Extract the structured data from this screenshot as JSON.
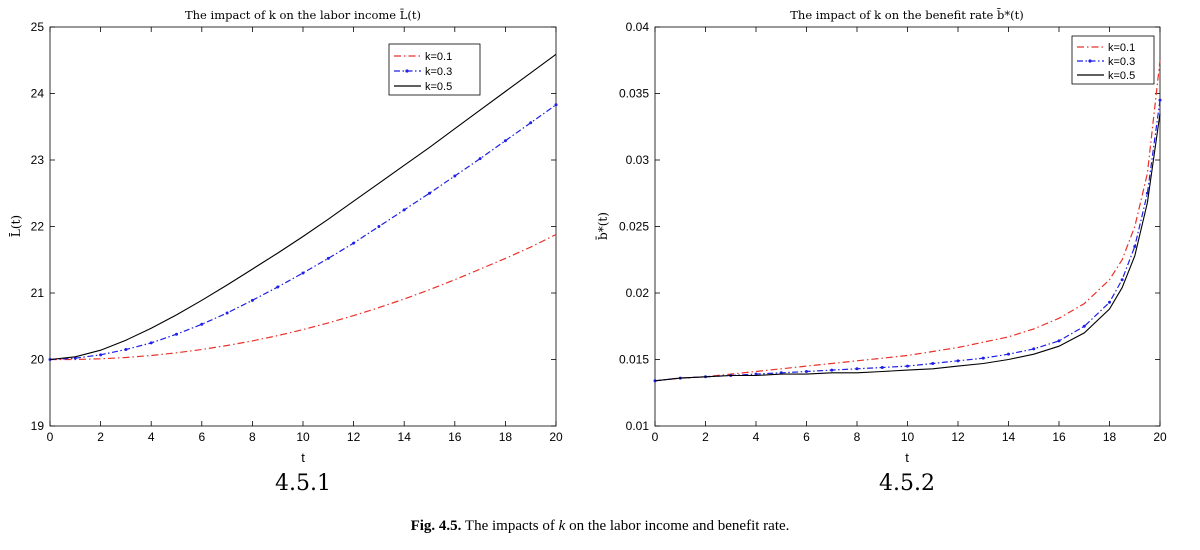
{
  "chart_data": [
    {
      "type": "line",
      "panel_label": "4.5.1",
      "title": "The impact of k on the labor income L̄(t)",
      "xlabel": "t",
      "ylabel": "L̄(t)",
      "xlim": [
        0,
        20
      ],
      "ylim": [
        19,
        25
      ],
      "xticks": [
        0,
        2,
        4,
        6,
        8,
        10,
        12,
        14,
        16,
        18,
        20
      ],
      "yticks": [
        19,
        20,
        21,
        22,
        23,
        24,
        25
      ],
      "legend_position": "top-right",
      "grid": false,
      "x": [
        0,
        1,
        2,
        3,
        4,
        5,
        6,
        7,
        8,
        9,
        10,
        11,
        12,
        13,
        14,
        15,
        16,
        17,
        18,
        19,
        20
      ],
      "series": [
        {
          "name": "k=0.1",
          "color": "#e8322a",
          "style": "dashdot",
          "values": [
            20.0,
            20.0,
            20.01,
            20.03,
            20.06,
            20.1,
            20.15,
            20.21,
            20.28,
            20.36,
            20.45,
            20.55,
            20.66,
            20.78,
            20.91,
            21.05,
            21.2,
            21.36,
            21.52,
            21.69,
            21.88
          ]
        },
        {
          "name": "k=0.3",
          "color": "#1f1fe6",
          "style": "dashdot-marker",
          "values": [
            20.0,
            20.02,
            20.07,
            20.15,
            20.25,
            20.38,
            20.53,
            20.7,
            20.89,
            21.09,
            21.3,
            21.52,
            21.75,
            22.0,
            22.25,
            22.5,
            22.76,
            23.02,
            23.29,
            23.56,
            23.83
          ]
        },
        {
          "name": "k=0.5",
          "color": "#000000",
          "style": "solid",
          "values": [
            20.0,
            20.04,
            20.14,
            20.29,
            20.47,
            20.67,
            20.89,
            21.12,
            21.36,
            21.6,
            21.85,
            22.11,
            22.38,
            22.65,
            22.92,
            23.19,
            23.47,
            23.75,
            24.03,
            24.31,
            24.59
          ]
        }
      ]
    },
    {
      "type": "line",
      "panel_label": "4.5.2",
      "title": "The impact of k on the benefit rate b̄*(t)",
      "xlabel": "t",
      "ylabel": "b̄*(t)",
      "xlim": [
        0,
        20
      ],
      "ylim": [
        0.01,
        0.04
      ],
      "xticks": [
        0,
        2,
        4,
        6,
        8,
        10,
        12,
        14,
        16,
        18,
        20
      ],
      "yticks": [
        0.01,
        0.015,
        0.02,
        0.025,
        0.03,
        0.035,
        0.04
      ],
      "ytick_labels": [
        "0.01",
        "0.015",
        "0.02",
        "0.025",
        "0.03",
        "0.035",
        "0.04"
      ],
      "legend_position": "top-right",
      "grid": false,
      "x": [
        0,
        1,
        2,
        3,
        4,
        5,
        6,
        7,
        8,
        9,
        10,
        11,
        12,
        13,
        14,
        15,
        16,
        17,
        18,
        18.5,
        19,
        19.5,
        20
      ],
      "series": [
        {
          "name": "k=0.1",
          "color": "#e8322a",
          "style": "dashdot",
          "values": [
            0.0134,
            0.0136,
            0.0137,
            0.0139,
            0.0141,
            0.0143,
            0.0145,
            0.0147,
            0.0149,
            0.0151,
            0.0153,
            0.0156,
            0.0159,
            0.0163,
            0.0167,
            0.0173,
            0.0181,
            0.0192,
            0.021,
            0.0225,
            0.025,
            0.029,
            0.0375
          ]
        },
        {
          "name": "k=0.3",
          "color": "#1f1fe6",
          "style": "dashdot-marker",
          "values": [
            0.0134,
            0.0136,
            0.0137,
            0.0138,
            0.0139,
            0.014,
            0.0141,
            0.0142,
            0.0143,
            0.0144,
            0.0145,
            0.0147,
            0.0149,
            0.0151,
            0.0154,
            0.0158,
            0.0164,
            0.0175,
            0.0193,
            0.021,
            0.0235,
            0.0275,
            0.0345
          ]
        },
        {
          "name": "k=0.5",
          "color": "#000000",
          "style": "solid",
          "values": [
            0.0134,
            0.0136,
            0.0137,
            0.0138,
            0.0138,
            0.0139,
            0.0139,
            0.014,
            0.014,
            0.0141,
            0.0142,
            0.0143,
            0.0145,
            0.0147,
            0.015,
            0.0154,
            0.016,
            0.017,
            0.0188,
            0.0204,
            0.0228,
            0.0268,
            0.0335
          ]
        }
      ]
    }
  ],
  "caption": {
    "label": "Fig. 4.5.",
    "text_before": " The impacts of ",
    "var": "k",
    "text_after": " on the labor income and benefit rate."
  }
}
